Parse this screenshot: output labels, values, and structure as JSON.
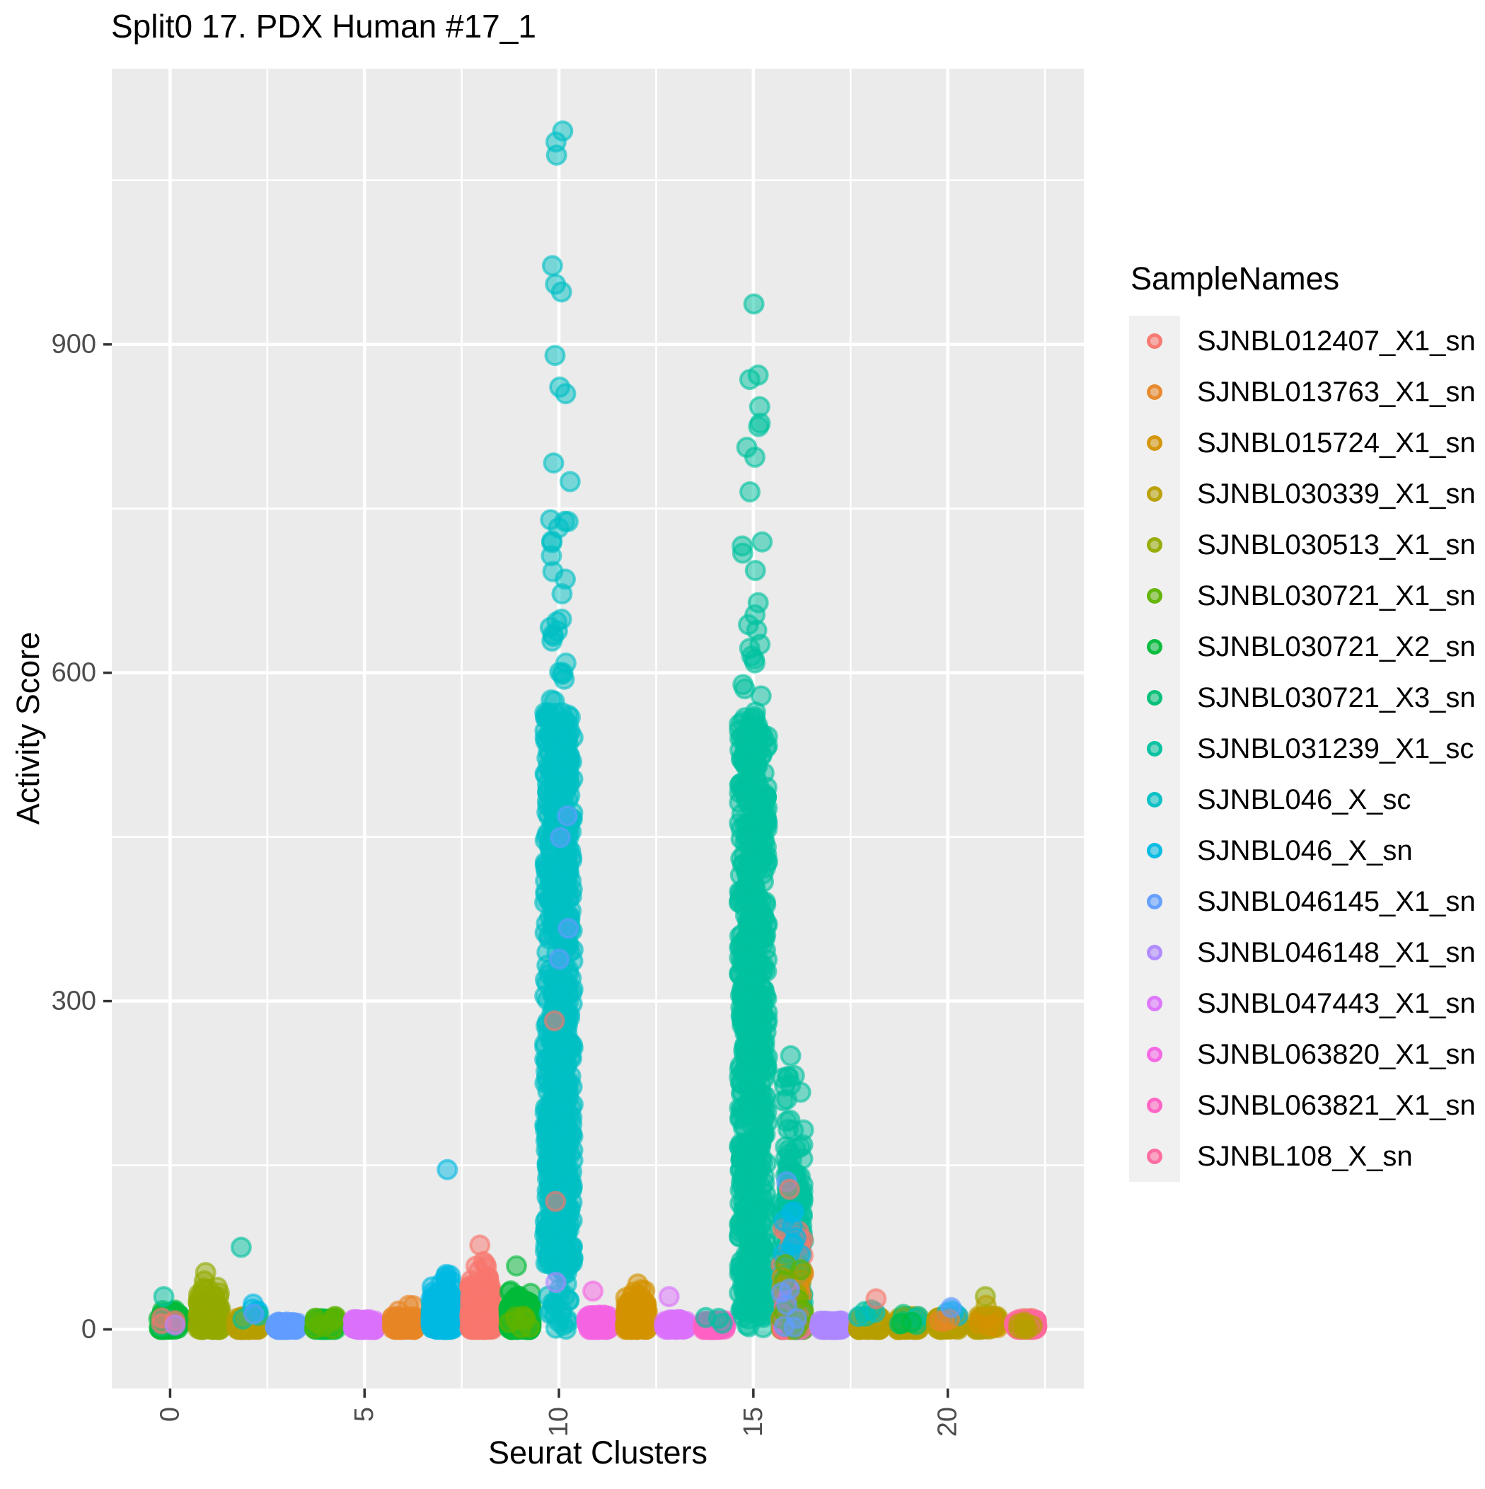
{
  "style": {
    "panel_bg": "#EBEBEB",
    "grid_color": "#FFFFFF",
    "tick_mark_color": "#333333",
    "tick_label_color": "#4D4D4D",
    "text_color": "#000000",
    "legend_key_bg": "#F0F0F0",
    "point_fill_opacity": 0.5,
    "point_stroke_opacity": 0.6
  },
  "chart_data": {
    "type": "scatter",
    "variant": "jitter-strip",
    "title": "Split0 17. PDX Human #17_1",
    "xlabel": "Seurat Clusters",
    "ylabel": "Activity Score",
    "legend_title": "SampleNames",
    "legend_position": "right",
    "grid": true,
    "x_ticks": [
      0,
      5,
      10,
      15,
      20
    ],
    "x_minor": [
      2.5,
      7.5,
      12.5,
      17.5,
      22.5
    ],
    "y_ticks": [
      0,
      300,
      600,
      900
    ],
    "y_minor": [
      150,
      450,
      750,
      1050
    ],
    "x_range": [
      -1.5,
      23.5
    ],
    "y_range": [
      -54,
      1152
    ],
    "samples": [
      {
        "name": "SJNBL012407_X1_sn",
        "color": "#F8766D"
      },
      {
        "name": "SJNBL013763_X1_sn",
        "color": "#E88526"
      },
      {
        "name": "SJNBL015724_X1_sn",
        "color": "#D39200"
      },
      {
        "name": "SJNBL030339_X1_sn",
        "color": "#B79F00"
      },
      {
        "name": "SJNBL030513_X1_sn",
        "color": "#93AA00"
      },
      {
        "name": "SJNBL030721_X1_sn",
        "color": "#5EB300"
      },
      {
        "name": "SJNBL030721_X2_sn",
        "color": "#00BA38"
      },
      {
        "name": "SJNBL030721_X3_sn",
        "color": "#00BF74"
      },
      {
        "name": "SJNBL031239_X1_sc",
        "color": "#00C19F"
      },
      {
        "name": "SJNBL046_X_sc",
        "color": "#00BFC4"
      },
      {
        "name": "SJNBL046_X_sn",
        "color": "#00B9E3"
      },
      {
        "name": "SJNBL046145_X1_sn",
        "color": "#619CFF"
      },
      {
        "name": "SJNBL046148_X1_sn",
        "color": "#AE87FF"
      },
      {
        "name": "SJNBL047443_X1_sn",
        "color": "#DB72FB"
      },
      {
        "name": "SJNBL063820_X1_sn",
        "color": "#F564E3"
      },
      {
        "name": "SJNBL063821_X1_sn",
        "color": "#FF61C3"
      },
      {
        "name": "SJNBL108_X_sn",
        "color": "#FF689E"
      }
    ],
    "clusters": [
      {
        "x": 0,
        "groups": [
          {
            "sample": "SJNBL030721_X2_sn",
            "n": 70,
            "y0": 0,
            "y1": 18,
            "bias": 1.6
          },
          {
            "sample": "SJNBL030721_X3_sn",
            "n": 6,
            "y0": 0,
            "y1": 12,
            "bias": 1
          },
          {
            "sample": "SJNBL012407_X1_sn",
            "n": 4,
            "y0": 4,
            "y1": 14,
            "bias": 1
          }
        ],
        "points": [
          {
            "sample": "SJNBL031239_X1_sc",
            "y": 30
          },
          {
            "sample": "SJNBL046148_X1_sn",
            "y": 4
          }
        ]
      },
      {
        "x": 1,
        "groups": [
          {
            "sample": "SJNBL030513_X1_sn",
            "n": 210,
            "y0": 0,
            "y1": 30,
            "bias": 1.5
          },
          {
            "sample": "SJNBL030513_X1_sn",
            "n": 10,
            "y0": 30,
            "y1": 46,
            "bias": 1.2
          }
        ],
        "points": [
          {
            "sample": "SJNBL030513_X1_sn",
            "y": 52
          }
        ]
      },
      {
        "x": 2,
        "groups": [
          {
            "sample": "SJNBL030339_X1_sn",
            "n": 120,
            "y0": 0,
            "y1": 12,
            "bias": 1.6
          },
          {
            "sample": "SJNBL046_X_sn",
            "n": 5,
            "y0": 10,
            "y1": 24,
            "bias": 1
          },
          {
            "sample": "SJNBL031239_X1_sc",
            "n": 2,
            "y0": 8,
            "y1": 16,
            "bias": 1
          }
        ],
        "points": [
          {
            "sample": "SJNBL031239_X1_sc",
            "y": 75
          },
          {
            "sample": "SJNBL046145_X1_sn",
            "y": 14
          }
        ]
      },
      {
        "x": 3,
        "groups": [
          {
            "sample": "SJNBL046145_X1_sn",
            "n": 110,
            "y0": 0,
            "y1": 7,
            "bias": 1.4
          }
        ],
        "points": []
      },
      {
        "x": 4,
        "groups": [
          {
            "sample": "SJNBL030721_X2_sn",
            "n": 110,
            "y0": 0,
            "y1": 10,
            "bias": 1.6
          },
          {
            "sample": "SJNBL030721_X1_sn",
            "n": 10,
            "y0": 0,
            "y1": 12,
            "bias": 1.3
          }
        ],
        "points": []
      },
      {
        "x": 5,
        "groups": [
          {
            "sample": "SJNBL047443_X1_sn",
            "n": 110,
            "y0": 0,
            "y1": 9,
            "bias": 1.4
          }
        ],
        "points": []
      },
      {
        "x": 6,
        "groups": [
          {
            "sample": "SJNBL013763_X1_sn",
            "n": 130,
            "y0": 0,
            "y1": 12,
            "bias": 1.7
          },
          {
            "sample": "SJNBL013763_X1_sn",
            "n": 3,
            "y0": 14,
            "y1": 26,
            "bias": 1
          }
        ],
        "points": []
      },
      {
        "x": 7,
        "groups": [
          {
            "sample": "SJNBL046_X_sn",
            "n": 260,
            "y0": 0,
            "y1": 32,
            "bias": 1.6
          },
          {
            "sample": "SJNBL046_X_sn",
            "n": 12,
            "y0": 32,
            "y1": 52,
            "bias": 1.2
          }
        ],
        "points": [
          {
            "sample": "SJNBL046_X_sn",
            "y": 146
          }
        ]
      },
      {
        "x": 8,
        "groups": [
          {
            "sample": "SJNBL012407_X1_sn",
            "n": 300,
            "y0": 0,
            "y1": 42,
            "bias": 1.7
          },
          {
            "sample": "SJNBL012407_X1_sn",
            "n": 10,
            "y0": 42,
            "y1": 62,
            "bias": 1.2
          }
        ],
        "points": [
          {
            "sample": "SJNBL012407_X1_sn",
            "y": 77
          }
        ]
      },
      {
        "x": 9,
        "groups": [
          {
            "sample": "SJNBL030721_X2_sn",
            "n": 260,
            "y0": 0,
            "y1": 26,
            "bias": 1.6
          },
          {
            "sample": "SJNBL030721_X2_sn",
            "n": 10,
            "y0": 26,
            "y1": 44,
            "bias": 1.2
          },
          {
            "sample": "SJNBL030721_X1_sn",
            "n": 8,
            "y0": 0,
            "y1": 20,
            "bias": 1.2
          }
        ],
        "points": [
          {
            "sample": "SJNBL030721_X2_sn",
            "y": 58
          }
        ]
      },
      {
        "x": 10,
        "groups": [
          {
            "sample": "SJNBL046_X_sc",
            "n": 38,
            "y0": 0,
            "y1": 70,
            "bias": 1
          },
          {
            "sample": "SJNBL046_X_sc",
            "n": 640,
            "y0": 60,
            "y1": 565,
            "bias": 1.12
          },
          {
            "sample": "SJNBL046_X_sc",
            "n": 26,
            "y0": 565,
            "y1": 800,
            "bias": 1.25
          },
          {
            "sample": "SJNBL046145_X1_sn",
            "n": 4,
            "y0": 280,
            "y1": 500,
            "bias": 1
          }
        ],
        "points": [
          {
            "sample": "SJNBL046_X_sc",
            "y": 855
          },
          {
            "sample": "SJNBL046_X_sc",
            "y": 861
          },
          {
            "sample": "SJNBL046_X_sc",
            "y": 890
          },
          {
            "sample": "SJNBL046_X_sc",
            "y": 948
          },
          {
            "sample": "SJNBL046_X_sc",
            "y": 955
          },
          {
            "sample": "SJNBL046_X_sc",
            "y": 972
          },
          {
            "sample": "SJNBL046_X_sc",
            "y": 1073
          },
          {
            "sample": "SJNBL046_X_sc",
            "y": 1085
          },
          {
            "sample": "SJNBL046_X_sc",
            "y": 1095
          },
          {
            "sample": "SJNBL012407_X1_sn",
            "y": 117
          },
          {
            "sample": "SJNBL012407_X1_sn",
            "y": 282
          },
          {
            "sample": "SJNBL046148_X1_sn",
            "y": 43
          }
        ]
      },
      {
        "x": 11,
        "groups": [
          {
            "sample": "SJNBL063820_X1_sn",
            "n": 130,
            "y0": 0,
            "y1": 13,
            "bias": 1.5
          }
        ],
        "points": [
          {
            "sample": "SJNBL063820_X1_sn",
            "y": 35
          }
        ]
      },
      {
        "x": 12,
        "groups": [
          {
            "sample": "SJNBL015724_X1_sn",
            "n": 200,
            "y0": 0,
            "y1": 26,
            "bias": 1.6
          },
          {
            "sample": "SJNBL015724_X1_sn",
            "n": 8,
            "y0": 26,
            "y1": 44,
            "bias": 1.2
          }
        ],
        "points": []
      },
      {
        "x": 13,
        "groups": [
          {
            "sample": "SJNBL047443_X1_sn",
            "n": 110,
            "y0": 0,
            "y1": 9,
            "bias": 1.4
          }
        ],
        "points": [
          {
            "sample": "SJNBL047443_X1_sn",
            "y": 30
          }
        ]
      },
      {
        "x": 14,
        "groups": [
          {
            "sample": "SJNBL063821_X1_sn",
            "n": 120,
            "y0": 0,
            "y1": 8,
            "bias": 1.4
          },
          {
            "sample": "SJNBL031239_X1_sc",
            "n": 3,
            "y0": 4,
            "y1": 12,
            "bias": 1
          }
        ],
        "points": []
      },
      {
        "x": 15,
        "groups": [
          {
            "sample": "SJNBL031239_X1_sc",
            "n": 16,
            "y0": 0,
            "y1": 22,
            "bias": 1
          },
          {
            "sample": "SJNBL031239_X1_sc",
            "n": 680,
            "y0": 16,
            "y1": 560,
            "bias": 1.1
          },
          {
            "sample": "SJNBL031239_X1_sc",
            "n": 18,
            "y0": 560,
            "y1": 770,
            "bias": 1.2
          }
        ],
        "points": [
          {
            "sample": "SJNBL031239_X1_sc",
            "y": 797
          },
          {
            "sample": "SJNBL031239_X1_sc",
            "y": 806
          },
          {
            "sample": "SJNBL031239_X1_sc",
            "y": 825
          },
          {
            "sample": "SJNBL031239_X1_sc",
            "y": 828
          },
          {
            "sample": "SJNBL031239_X1_sc",
            "y": 843
          },
          {
            "sample": "SJNBL031239_X1_sc",
            "y": 868
          },
          {
            "sample": "SJNBL031239_X1_sc",
            "y": 872
          },
          {
            "sample": "SJNBL031239_X1_sc",
            "y": 937
          }
        ]
      },
      {
        "x": 16,
        "groups": [
          {
            "sample": "SJNBL031239_X1_sc",
            "n": 260,
            "y0": 0,
            "y1": 150,
            "bias": 1.8
          },
          {
            "sample": "SJNBL031239_X1_sc",
            "n": 22,
            "y0": 150,
            "y1": 232,
            "bias": 1.2
          },
          {
            "sample": "SJNBL012407_X1_sn",
            "n": 52,
            "y0": 0,
            "y1": 95,
            "bias": 2
          },
          {
            "sample": "SJNBL013763_X1_sn",
            "n": 36,
            "y0": 0,
            "y1": 85,
            "bias": 2
          },
          {
            "sample": "SJNBL046_X_sn",
            "n": 42,
            "y0": 0,
            "y1": 110,
            "bias": 2
          },
          {
            "sample": "SJNBL015724_X1_sn",
            "n": 18,
            "y0": 0,
            "y1": 55,
            "bias": 1.8
          },
          {
            "sample": "SJNBL030513_X1_sn",
            "n": 14,
            "y0": 0,
            "y1": 55,
            "bias": 1.8
          },
          {
            "sample": "SJNBL063821_X1_sn",
            "n": 12,
            "y0": 0,
            "y1": 35,
            "bias": 1.5
          },
          {
            "sample": "SJNBL030721_X1_sn",
            "n": 10,
            "y0": 0,
            "y1": 60,
            "bias": 1.8
          },
          {
            "sample": "SJNBL046145_X1_sn",
            "n": 6,
            "y0": 0,
            "y1": 50,
            "bias": 1.5
          }
        ],
        "points": [
          {
            "sample": "SJNBL031239_X1_sc",
            "y": 250
          },
          {
            "sample": "SJNBL031239_X1_sc",
            "y": 190
          },
          {
            "sample": "SJNBL031239_X1_sc",
            "y": 165
          },
          {
            "sample": "SJNBL046145_X1_sn",
            "y": 135
          },
          {
            "sample": "SJNBL012407_X1_sn",
            "y": 128
          }
        ]
      },
      {
        "x": 17,
        "groups": [
          {
            "sample": "SJNBL046148_X1_sn",
            "n": 120,
            "y0": 0,
            "y1": 8,
            "bias": 1.4
          }
        ],
        "points": []
      },
      {
        "x": 18,
        "groups": [
          {
            "sample": "SJNBL030339_X1_sn",
            "n": 100,
            "y0": 0,
            "y1": 12,
            "bias": 1.6
          },
          {
            "sample": "SJNBL031239_X1_sc",
            "n": 3,
            "y0": 8,
            "y1": 18,
            "bias": 1
          },
          {
            "sample": "SJNBL046_X_sc",
            "n": 2,
            "y0": 10,
            "y1": 16,
            "bias": 1
          }
        ],
        "points": [
          {
            "sample": "SJNBL012407_X1_sn",
            "y": 28
          }
        ]
      },
      {
        "x": 19,
        "groups": [
          {
            "sample": "SJNBL030339_X1_sn",
            "n": 100,
            "y0": 0,
            "y1": 12,
            "bias": 1.6
          },
          {
            "sample": "SJNBL030721_X3_sn",
            "n": 4,
            "y0": 4,
            "y1": 18,
            "bias": 1
          },
          {
            "sample": "SJNBL031239_X1_sc",
            "n": 3,
            "y0": 6,
            "y1": 16,
            "bias": 1
          },
          {
            "sample": "SJNBL030721_X2_sn",
            "n": 2,
            "y0": 2,
            "y1": 10,
            "bias": 1
          }
        ],
        "points": []
      },
      {
        "x": 20,
        "groups": [
          {
            "sample": "SJNBL030339_X1_sn",
            "n": 90,
            "y0": 0,
            "y1": 12,
            "bias": 1.6
          },
          {
            "sample": "SJNBL046_X_sn",
            "n": 4,
            "y0": 10,
            "y1": 22,
            "bias": 1
          },
          {
            "sample": "SJNBL013763_X1_sn",
            "n": 3,
            "y0": 0,
            "y1": 10,
            "bias": 1
          }
        ],
        "points": [
          {
            "sample": "SJNBL046145_X1_sn",
            "y": 20
          }
        ]
      },
      {
        "x": 21,
        "groups": [
          {
            "sample": "SJNBL030339_X1_sn",
            "n": 90,
            "y0": 0,
            "y1": 13,
            "bias": 1.6
          },
          {
            "sample": "SJNBL015724_X1_sn",
            "n": 6,
            "y0": 0,
            "y1": 12,
            "bias": 1
          }
        ],
        "points": [
          {
            "sample": "SJNBL030513_X1_sn",
            "y": 30
          },
          {
            "sample": "SJNBL030339_X1_sn",
            "y": 22
          }
        ]
      },
      {
        "x": 22,
        "groups": [
          {
            "sample": "SJNBL012407_X1_sn",
            "n": 55,
            "y0": 0,
            "y1": 10,
            "bias": 1.5
          },
          {
            "sample": "SJNBL108_X_sn",
            "n": 55,
            "y0": 0,
            "y1": 10,
            "bias": 1.5
          },
          {
            "sample": "SJNBL030339_X1_sn",
            "n": 8,
            "y0": 0,
            "y1": 8,
            "bias": 1
          }
        ],
        "points": []
      }
    ]
  }
}
